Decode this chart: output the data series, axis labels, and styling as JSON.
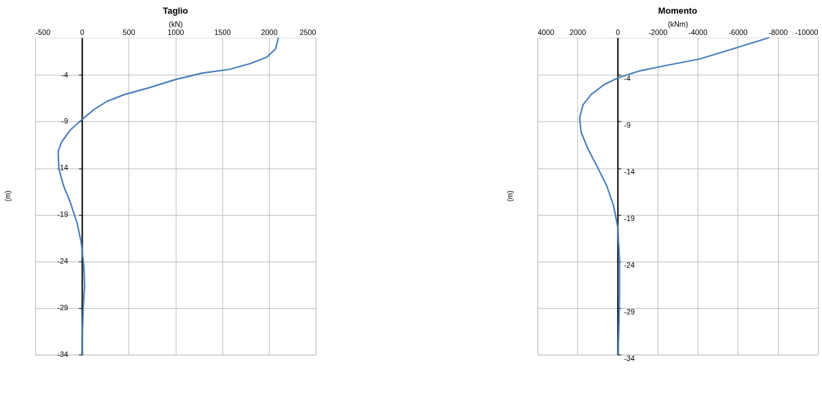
{
  "chart_data": [
    {
      "type": "line",
      "title": "Taglio",
      "xlabel": "(kN)",
      "ylabel": "(m)",
      "xlim": [
        -500,
        2500
      ],
      "xticks": [
        -500,
        0,
        500,
        1000,
        1500,
        2000,
        2500
      ],
      "ylim": [
        -34,
        0
      ],
      "yticks": [
        -34,
        -29,
        -24,
        -19,
        -14,
        -9,
        -4
      ],
      "grid": true,
      "series": [
        {
          "color": "#4a7ebb",
          "x": [
            2101,
            2072,
            1978,
            1797,
            1580,
            1290,
            1000,
            710,
            457,
            275,
            130,
            0,
            -123,
            -217,
            -254,
            -246,
            -196,
            -123,
            -51,
            -7,
            22,
            29,
            14,
            0
          ],
          "values": [
            0,
            -1.2,
            -2.1,
            -2.8,
            -3.4,
            -3.8,
            -4.5,
            -5.4,
            -6.1,
            -6.8,
            -7.7,
            -8.8,
            -9.9,
            -11.2,
            -12.2,
            -14.1,
            -15.9,
            -17.7,
            -19.9,
            -22,
            -24.6,
            -26.7,
            -28.9,
            -34
          ]
        }
      ]
    },
    {
      "type": "line",
      "title": "Momento",
      "xlabel": "(kNm)",
      "ylabel": "(m)",
      "xlim": [
        4000,
        -10000
      ],
      "xticks": [
        4000,
        2000,
        0,
        -2000,
        -4000,
        -6000,
        -8000,
        -10000
      ],
      "ylim": [
        -34,
        0
      ],
      "yticks": [
        -34,
        -29,
        -24,
        -19,
        -14,
        -9,
        -4
      ],
      "grid": true,
      "series": [
        {
          "color": "#4a7ebb",
          "x": [
            -7568,
            -5777,
            -4088,
            -2399,
            -1047,
            -34,
            642,
            1318,
            1723,
            1892,
            1824,
            1486,
            1047,
            540,
            203,
            0,
            -101,
            -101,
            -34
          ],
          "values": [
            0,
            -1.2,
            -2.3,
            -3.0,
            -3.6,
            -4.3,
            -5,
            -6.1,
            -7.2,
            -8.6,
            -10.1,
            -11.9,
            -13.7,
            -15.9,
            -18,
            -20.2,
            -23.8,
            -27.5,
            -34
          ]
        }
      ]
    }
  ]
}
